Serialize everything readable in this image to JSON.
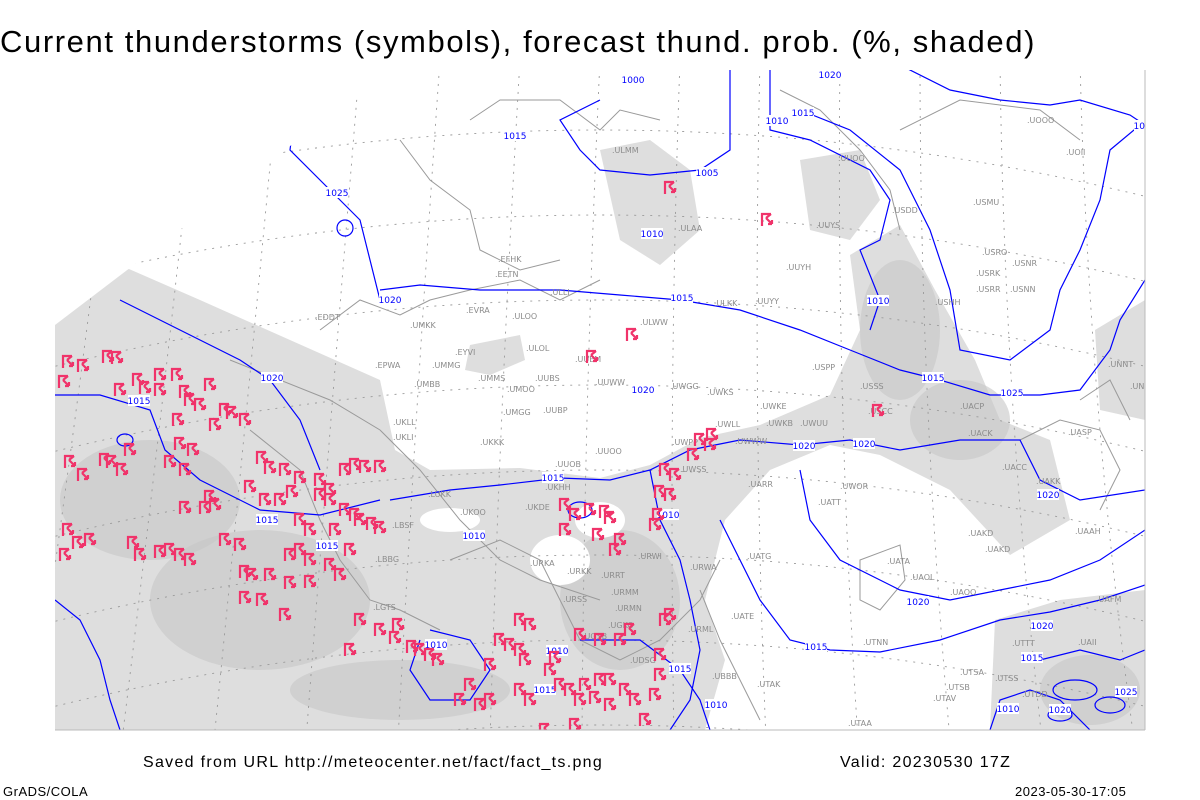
{
  "title": "Current thunderstorms (symbols), forecast thund. prob. (%, shaded)",
  "footer": {
    "saved_from": "Saved from URL http://meteocenter.net/fact/fact_ts.png",
    "valid": "Valid: 20230530 17Z",
    "software": "GrADS/COLA",
    "timestamp": "2023-05-30-17:05"
  },
  "colors": {
    "isobar": "#0000ff",
    "thunderstorm_symbol": "#f0336a",
    "probability_shade_light": "#dedede",
    "probability_shade_dark": "#c6c6c6",
    "station_label": "#8c8c8c"
  },
  "symbol_meaning": "thunderstorm-icon",
  "isobar_labels": [
    "1000",
    "1020",
    "1015",
    "1010",
    "1015",
    "1025",
    "1005",
    "1010",
    "1020",
    "1015",
    "1010",
    "1015",
    "1020",
    "1015",
    "1020",
    "1020",
    "1020",
    "1025",
    "1015",
    "1015",
    "1015",
    "1010",
    "1010",
    "1020",
    "1020",
    "1015",
    "1010",
    "1010",
    "1015",
    "1015",
    "1010",
    "1020",
    "1015",
    "1025",
    "1010",
    "1020",
    "1020"
  ],
  "stations": [
    ".EDDT",
    ".EPWA",
    ".UMMG",
    ".EYVI",
    ".EVRA",
    ".ULOO",
    ".ULOL",
    ".UMMS",
    ".UMOO",
    ".UUBS",
    ".UUEM",
    ".UUWW",
    ".ULWW",
    ".UMGG",
    ".UUBP",
    ".UKKK",
    ".UUOO",
    ".UUOB",
    ".UMKK",
    ".UMBB",
    ".UKLL",
    ".UKLI",
    ".UWGG",
    ".UWPP",
    ".UWSS",
    ".UWKS",
    ".UWKE",
    ".UWKB",
    ".UWUU",
    ".UWWW",
    ".UWLL",
    ".USPP",
    ".USSS",
    ".USCC",
    ".UUYY",
    ".ULKK",
    ".UUYH",
    ".UUYS",
    ".USHH",
    ".USMU",
    ".USRO",
    ".USRK",
    ".USNR",
    ".USRR",
    ".USNN",
    ".UACP",
    ".UACK",
    ".UASP",
    ".UACC",
    ".UAKK",
    ".UATT",
    ".UWOR",
    ".UARR",
    ".UATG",
    ".UATA",
    ".UAOL",
    ".UAOO",
    ".UAFM",
    ".UAAH",
    ".UAKD",
    ".UATE",
    ".URWA",
    ".URWI",
    ".URRT",
    ".URMM",
    ".URMN",
    ".URSS",
    ".URKK",
    ".URKA",
    ".UKOO",
    ".UKDE",
    ".UKHH",
    ".LUKK",
    ".LBBG",
    ".LBSF",
    ".LGTS",
    ".UGSB",
    ".UGKO",
    ".UBBB",
    ".UTAK",
    ".UTNN",
    ".UTAA",
    ".UTAV",
    ".UTSB",
    ".UTSA",
    ".UTSS",
    ".UTDD",
    ".UOOO",
    ".UOII",
    ".ULMM",
    ".USDD",
    ".UUOO",
    ".ULAA",
    ".EFHK",
    ".EETN",
    ".ULLI",
    ".UNNT",
    ".UNBB",
    ".URML",
    ".UDSG",
    ".UAII",
    ".UTTT",
    ".UAKD"
  ]
}
